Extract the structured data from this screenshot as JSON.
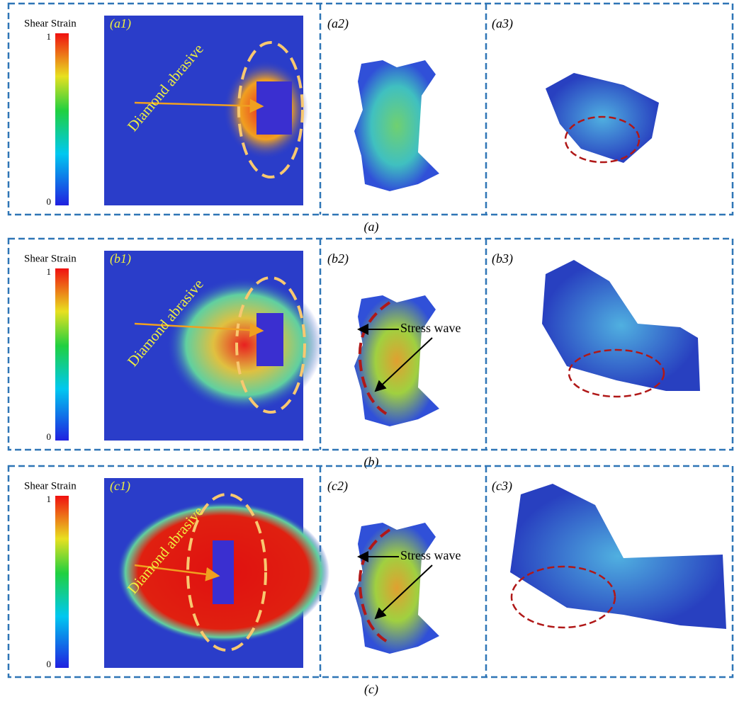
{
  "rows": [
    {
      "caption": "(a)",
      "colorbar": {
        "title": "Shear Strain",
        "max": 1,
        "min": 0
      },
      "panels": [
        {
          "label": "(a1)",
          "annotation": "Diamond abrasive"
        },
        {
          "label": "(a2)"
        },
        {
          "label": "(a3)"
        }
      ]
    },
    {
      "caption": "(b)",
      "colorbar": {
        "title": "Shear Strain",
        "max": 1,
        "min": 0
      },
      "panels": [
        {
          "label": "(b1)",
          "annotation": "Diamond abrasive"
        },
        {
          "label": "(b2)",
          "annotation": "Stress wave"
        },
        {
          "label": "(b3)"
        }
      ]
    },
    {
      "caption": "(c)",
      "colorbar": {
        "title": "Shear Strain",
        "max": 1,
        "min": 0
      },
      "panels": [
        {
          "label": "(c1)",
          "annotation": "Diamond abrasive"
        },
        {
          "label": "(c2)",
          "annotation": "Stress wave"
        },
        {
          "label": "(c3)"
        }
      ]
    }
  ]
}
